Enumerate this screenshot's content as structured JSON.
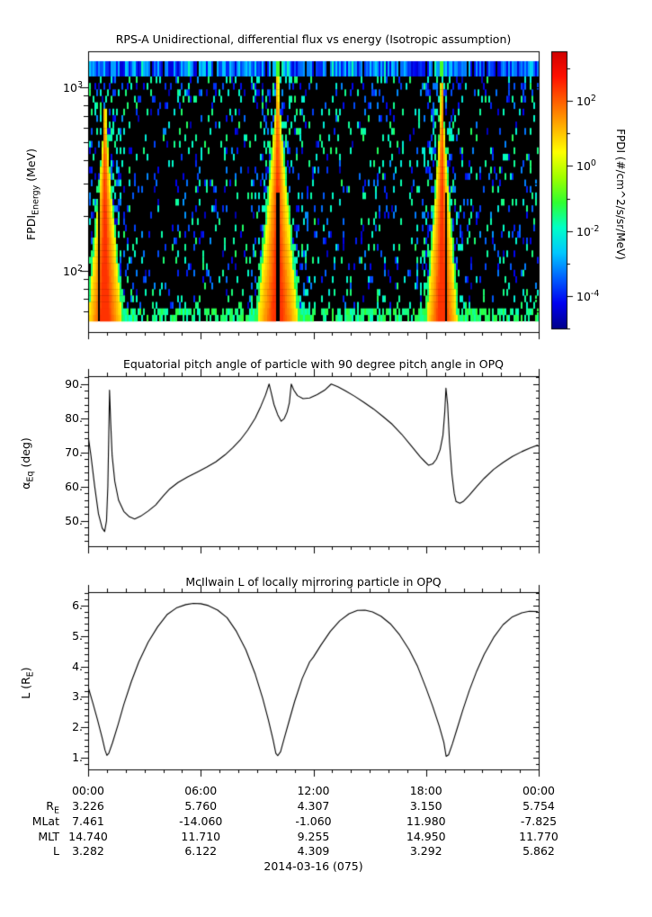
{
  "page": {
    "background": "#ffffff",
    "text_color": "#000000",
    "line_color": "#000000"
  },
  "chart_data": [
    {
      "id": "rps_spectrogram",
      "type": "heatmap",
      "title": "RPS-A Unidirectional, differential flux vs energy (Isotropic assumption)",
      "ylabel_main": "FPDI",
      "ylabel_sub": "Energy",
      "ylabel_unit": " (MeV)",
      "y_scale": "log",
      "y_range_mev": [
        53,
        1390
      ],
      "y_major_tick_exponents": [
        2,
        3
      ],
      "x_range_hours": [
        0,
        24
      ],
      "background_color": "#000000",
      "description": "Proton flux vs energy spectrogram; bright low-L inner-belt flux cones at each perigee pass, sparse blue/cyan noise elsewhere, continuous blue band in highest energy channel",
      "perigee_pass_hours": [
        0.85,
        10.05,
        18.8
      ],
      "flux_cones": [
        {
          "center_hour": 0.85,
          "half_width_hours": 1.05,
          "height_fraction": 0.88,
          "slit_offset_hours": -0.35
        },
        {
          "center_hour": 10.05,
          "half_width_hours": 1.25,
          "height_fraction": 1.0,
          "slit_offset_hours": 0
        },
        {
          "center_hour": 18.8,
          "half_width_hours": 0.95,
          "height_fraction": 0.97,
          "slit_offset_hours": 0.2
        }
      ],
      "colorbar": {
        "label": "FPDI (#/cm^2/s/sr/MeV)",
        "scale": "log",
        "tick_exponents": [
          2,
          0,
          -2,
          -4
        ],
        "minor_tick_exponents": [
          3,
          1,
          -1,
          -3,
          -5
        ],
        "range_exponents": [
          -5,
          3.5
        ],
        "colors": [
          "#00008b",
          "#0000f0",
          "#0060ff",
          "#00c8ff",
          "#00ffc8",
          "#30ff30",
          "#a0ff00",
          "#ffff00",
          "#ffb000",
          "#ff6000",
          "#ff1000",
          "#d00000"
        ]
      }
    },
    {
      "id": "equatorial_pitch_angle",
      "type": "line",
      "title": "Equatorial pitch angle of particle with 90 degree pitch angle in OPQ",
      "ylabel_main": "α",
      "ylabel_sub": "Eq",
      "ylabel_unit": " (deg)",
      "y_ticks": [
        90,
        80,
        70,
        60,
        50
      ],
      "y_tick_labels": [
        "90.",
        "80.",
        "70.",
        "60.",
        "50."
      ],
      "y_minor_step": 2,
      "ylim": [
        42.5,
        92.3
      ],
      "x_range_hours": [
        0,
        24
      ],
      "line_color": "#000000",
      "points": [
        [
          0,
          74.8
        ],
        [
          0.15,
          69
        ],
        [
          0.35,
          60
        ],
        [
          0.55,
          52
        ],
        [
          0.75,
          47.8
        ],
        [
          0.88,
          46.8
        ],
        [
          0.98,
          50
        ],
        [
          1.05,
          60
        ],
        [
          1.1,
          75
        ],
        [
          1.14,
          88.2
        ],
        [
          1.2,
          79
        ],
        [
          1.28,
          69
        ],
        [
          1.42,
          61.5
        ],
        [
          1.62,
          56
        ],
        [
          1.9,
          52.7
        ],
        [
          2.2,
          51.1
        ],
        [
          2.48,
          50.5
        ],
        [
          2.8,
          51.3
        ],
        [
          3.2,
          52.8
        ],
        [
          3.6,
          54.6
        ],
        [
          4.0,
          57.2
        ],
        [
          4.35,
          59.3
        ],
        [
          4.8,
          61.2
        ],
        [
          5.3,
          62.8
        ],
        [
          5.8,
          64.2
        ],
        [
          6.3,
          65.6
        ],
        [
          6.8,
          67.2
        ],
        [
          7.3,
          69.3
        ],
        [
          7.7,
          71.3
        ],
        [
          8.1,
          73.6
        ],
        [
          8.5,
          76.5
        ],
        [
          8.9,
          80
        ],
        [
          9.2,
          83.5
        ],
        [
          9.45,
          86.8
        ],
        [
          9.64,
          90
        ],
        [
          9.75,
          87.5
        ],
        [
          9.9,
          84
        ],
        [
          10.1,
          81
        ],
        [
          10.28,
          79.1
        ],
        [
          10.45,
          79.9
        ],
        [
          10.6,
          81.8
        ],
        [
          10.72,
          84.5
        ],
        [
          10.82,
          90
        ],
        [
          10.95,
          88.3
        ],
        [
          11.15,
          86.6
        ],
        [
          11.45,
          85.7
        ],
        [
          11.8,
          85.9
        ],
        [
          12.2,
          86.9
        ],
        [
          12.6,
          88.2
        ],
        [
          12.95,
          90
        ],
        [
          13.3,
          89.2
        ],
        [
          13.7,
          88
        ],
        [
          14.2,
          86.4
        ],
        [
          14.7,
          84.6
        ],
        [
          15.2,
          82.7
        ],
        [
          15.7,
          80.5
        ],
        [
          16.2,
          78.2
        ],
        [
          16.7,
          75.3
        ],
        [
          17.2,
          72
        ],
        [
          17.7,
          68.6
        ],
        [
          17.95,
          67.2
        ],
        [
          18.14,
          66.2
        ],
        [
          18.35,
          66.6
        ],
        [
          18.55,
          68
        ],
        [
          18.75,
          70.8
        ],
        [
          18.9,
          75
        ],
        [
          19.0,
          82
        ],
        [
          19.06,
          88.8
        ],
        [
          19.15,
          84
        ],
        [
          19.25,
          73
        ],
        [
          19.38,
          63.5
        ],
        [
          19.5,
          58
        ],
        [
          19.6,
          55.6
        ],
        [
          19.8,
          55.1
        ],
        [
          20.0,
          55.7
        ],
        [
          20.3,
          57.4
        ],
        [
          20.7,
          60
        ],
        [
          21.1,
          62.4
        ],
        [
          21.6,
          65
        ],
        [
          22.1,
          67
        ],
        [
          22.6,
          68.8
        ],
        [
          23.1,
          70.2
        ],
        [
          23.55,
          71.3
        ],
        [
          24,
          72.2
        ]
      ]
    },
    {
      "id": "mcilwain_l",
      "type": "line",
      "title": "McIlwain L of locally mirroring particle in OPQ",
      "ylabel_main": "L (R",
      "ylabel_sub": "E",
      "ylabel_unit": ")",
      "y_ticks": [
        6,
        5,
        4,
        3,
        2,
        1
      ],
      "y_tick_labels": [
        "6.",
        "5.",
        "4.",
        "3.",
        "2.",
        "1."
      ],
      "y_minor_step": 0.2,
      "ylim": [
        0.62,
        6.44
      ],
      "x_range_hours": [
        0,
        24
      ],
      "line_color": "#000000",
      "points": [
        [
          0,
          3.33
        ],
        [
          0.25,
          2.8
        ],
        [
          0.5,
          2.25
        ],
        [
          0.75,
          1.65
        ],
        [
          0.9,
          1.25
        ],
        [
          1.0,
          1.08
        ],
        [
          1.1,
          1.15
        ],
        [
          1.3,
          1.5
        ],
        [
          1.6,
          2.1
        ],
        [
          1.9,
          2.75
        ],
        [
          2.3,
          3.5
        ],
        [
          2.7,
          4.15
        ],
        [
          3.2,
          4.8
        ],
        [
          3.7,
          5.3
        ],
        [
          4.2,
          5.7
        ],
        [
          4.7,
          5.92
        ],
        [
          5.2,
          6.03
        ],
        [
          5.6,
          6.07
        ],
        [
          6.0,
          6.06
        ],
        [
          6.4,
          6.0
        ],
        [
          6.9,
          5.85
        ],
        [
          7.4,
          5.6
        ],
        [
          7.9,
          5.15
        ],
        [
          8.4,
          4.55
        ],
        [
          8.9,
          3.75
        ],
        [
          9.3,
          2.95
        ],
        [
          9.6,
          2.25
        ],
        [
          9.85,
          1.6
        ],
        [
          10.0,
          1.15
        ],
        [
          10.1,
          1.07
        ],
        [
          10.25,
          1.2
        ],
        [
          10.45,
          1.65
        ],
        [
          10.7,
          2.2
        ],
        [
          11.0,
          2.85
        ],
        [
          11.4,
          3.6
        ],
        [
          11.8,
          4.15
        ],
        [
          12.0,
          4.31
        ],
        [
          12.4,
          4.7
        ],
        [
          12.9,
          5.15
        ],
        [
          13.4,
          5.5
        ],
        [
          13.9,
          5.73
        ],
        [
          14.35,
          5.84
        ],
        [
          14.75,
          5.85
        ],
        [
          15.15,
          5.79
        ],
        [
          15.6,
          5.65
        ],
        [
          16.1,
          5.4
        ],
        [
          16.6,
          5.03
        ],
        [
          17.1,
          4.55
        ],
        [
          17.55,
          4.0
        ],
        [
          18.0,
          3.29
        ],
        [
          18.35,
          2.7
        ],
        [
          18.7,
          2.05
        ],
        [
          18.95,
          1.5
        ],
        [
          19.07,
          1.05
        ],
        [
          19.2,
          1.1
        ],
        [
          19.4,
          1.45
        ],
        [
          19.65,
          1.95
        ],
        [
          19.95,
          2.55
        ],
        [
          20.3,
          3.2
        ],
        [
          20.7,
          3.85
        ],
        [
          21.1,
          4.4
        ],
        [
          21.6,
          4.95
        ],
        [
          22.1,
          5.37
        ],
        [
          22.6,
          5.63
        ],
        [
          23.1,
          5.76
        ],
        [
          23.5,
          5.81
        ],
        [
          24,
          5.8
        ]
      ]
    }
  ],
  "time_axis": {
    "tick_labels": [
      "00:00",
      "06:00",
      "12:00",
      "18:00",
      "00:00"
    ],
    "tick_hours": [
      0,
      6,
      12,
      18,
      24
    ],
    "minor_tick_interval_hours": 1
  },
  "ephemeris_table": {
    "row_labels": [
      {
        "main": "R",
        "sub": "E"
      },
      {
        "main": "MLat",
        "sub": ""
      },
      {
        "main": "MLT",
        "sub": ""
      },
      {
        "main": "L",
        "sub": ""
      }
    ],
    "rows": [
      [
        "3.226",
        "5.760",
        "4.307",
        "3.150",
        "5.754"
      ],
      [
        "7.461",
        "-14.060",
        "-1.060",
        "11.980",
        "-7.825"
      ],
      [
        "14.740",
        "11.710",
        "9.255",
        "14.950",
        "11.770"
      ],
      [
        "3.282",
        "6.122",
        "4.309",
        "3.292",
        "5.862"
      ]
    ],
    "date_label": "2014-03-16 (075)"
  }
}
